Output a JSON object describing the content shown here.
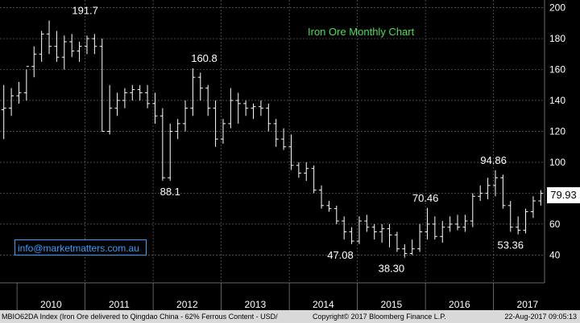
{
  "chart_data": {
    "type": "candlestick-monthly",
    "title": "Iron Ore Monthly Chart",
    "ylim": [
      22,
      205
    ],
    "yticks": [
      40,
      60,
      80,
      100,
      120,
      140,
      160,
      180,
      200
    ],
    "xlabels": [
      "2010",
      "2011",
      "2012",
      "2013",
      "2014",
      "2015",
      "2016",
      "2017"
    ],
    "x_range": [
      2009.75,
      2017.75
    ],
    "annotations": [
      {
        "text": "191.7",
        "x": 2011.0,
        "y": 191.7
      },
      {
        "text": "160.8",
        "x": 2012.75,
        "y": 160.8
      },
      {
        "text": "88.1",
        "x": 2012.25,
        "y": 88.1
      },
      {
        "text": "47.08",
        "x": 2014.75,
        "y": 47.08
      },
      {
        "text": "38.30",
        "x": 2015.5,
        "y": 38.3
      },
      {
        "text": "70.46",
        "x": 2016.0,
        "y": 70.46
      },
      {
        "text": "94.86",
        "x": 2017.0,
        "y": 94.86
      },
      {
        "text": "53.36",
        "x": 2017.25,
        "y": 53.36
      }
    ],
    "last_value": "79.93",
    "bars": [
      [
        134,
        150,
        115,
        135
      ],
      [
        135,
        148,
        130,
        143
      ],
      [
        143,
        152,
        138,
        145
      ],
      [
        145,
        160,
        140,
        162
      ],
      [
        162,
        175,
        155,
        170
      ],
      [
        170,
        185,
        165,
        183
      ],
      [
        183,
        191.7,
        170,
        175
      ],
      [
        175,
        185,
        165,
        168
      ],
      [
        168,
        182,
        160,
        178
      ],
      [
        178,
        183,
        168,
        172
      ],
      [
        172,
        178,
        165,
        175
      ],
      [
        175,
        182,
        170,
        180
      ],
      [
        180,
        183,
        170,
        175
      ],
      [
        175,
        180,
        120,
        120
      ],
      [
        120,
        150,
        118,
        135
      ],
      [
        135,
        145,
        130,
        140
      ],
      [
        140,
        148,
        135,
        145
      ],
      [
        145,
        150,
        140,
        147
      ],
      [
        147,
        150,
        140,
        145
      ],
      [
        145,
        150,
        135,
        138
      ],
      [
        138,
        145,
        125,
        130
      ],
      [
        130,
        135,
        88.1,
        90
      ],
      [
        90,
        125,
        88.1,
        120
      ],
      [
        120,
        128,
        115,
        125
      ],
      [
        125,
        140,
        120,
        135
      ],
      [
        135,
        160.8,
        130,
        155
      ],
      [
        155,
        158,
        140,
        148
      ],
      [
        148,
        150,
        130,
        135
      ],
      [
        135,
        140,
        110,
        115
      ],
      [
        115,
        128,
        112,
        125
      ],
      [
        125,
        148,
        122,
        140
      ],
      [
        140,
        145,
        125,
        138
      ],
      [
        138,
        140,
        130,
        135
      ],
      [
        135,
        138,
        128,
        136
      ],
      [
        136,
        140,
        130,
        135
      ],
      [
        135,
        138,
        120,
        125
      ],
      [
        125,
        128,
        110,
        115
      ],
      [
        115,
        122,
        108,
        110
      ],
      [
        110,
        118,
        95,
        98
      ],
      [
        98,
        100,
        90,
        93
      ],
      [
        93,
        100,
        88,
        96
      ],
      [
        96,
        98,
        80,
        82
      ],
      [
        82,
        85,
        70,
        72
      ],
      [
        72,
        75,
        68,
        70
      ],
      [
        70,
        72,
        60,
        62
      ],
      [
        62,
        65,
        50,
        55
      ],
      [
        55,
        58,
        47.08,
        49
      ],
      [
        49,
        65,
        47.08,
        62
      ],
      [
        62,
        66,
        55,
        58
      ],
      [
        58,
        60,
        50,
        55
      ],
      [
        55,
        60,
        48,
        57
      ],
      [
        57,
        60,
        45,
        53
      ],
      [
        53,
        55,
        42,
        44
      ],
      [
        44,
        47,
        38.3,
        41
      ],
      [
        41,
        50,
        40,
        44
      ],
      [
        44,
        60,
        42,
        55
      ],
      [
        55,
        70.46,
        50,
        60
      ],
      [
        60,
        65,
        50,
        52
      ],
      [
        52,
        62,
        48,
        58
      ],
      [
        58,
        65,
        55,
        60
      ],
      [
        60,
        66,
        56,
        58
      ],
      [
        58,
        66,
        55,
        62
      ],
      [
        62,
        80,
        58,
        78
      ],
      [
        78,
        85,
        75,
        80
      ],
      [
        80,
        90,
        76,
        85
      ],
      [
        85,
        94.86,
        78,
        90
      ],
      [
        90,
        92,
        70,
        72
      ],
      [
        72,
        75,
        55,
        58
      ],
      [
        58,
        65,
        53.36,
        56
      ],
      [
        56,
        70,
        54,
        68
      ],
      [
        68,
        78,
        64,
        75
      ],
      [
        75,
        82,
        72,
        79.93
      ]
    ]
  },
  "email": "info@marketmatters.com.au",
  "footer": {
    "left": "MBIO62DA Index (Iron Ore delivered to Qingdao China - 62% Ferrous Content - USD/",
    "middle": "Copyright© 2017 Bloomberg Finance L.P.",
    "right": "22-Aug-2017 09:05:13"
  },
  "colors": {
    "background": "#000000",
    "bars": "#ffffff",
    "title": "#49e04f",
    "email": "#3aa0ff"
  }
}
